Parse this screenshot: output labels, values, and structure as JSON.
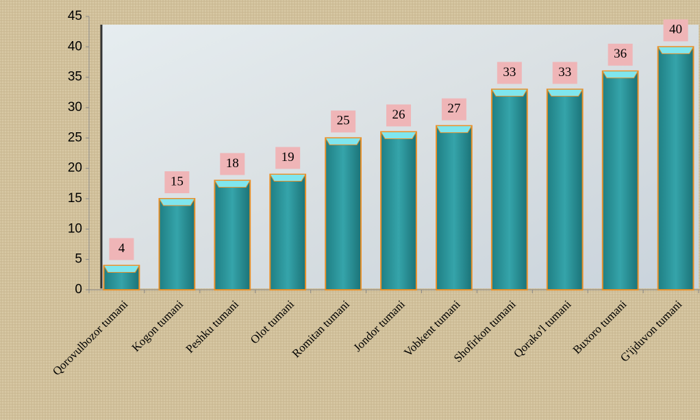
{
  "chart_data": {
    "type": "bar",
    "categories": [
      "Qorovulbozor tumani",
      "Kogon tumani",
      "Peshku tumani",
      "Olot tumani",
      "Romitan tumani",
      "Jondor tumani",
      "Vobkent tumani",
      "Shofirkon tumani",
      "Qorako'l tumani",
      "Buxoro tumani",
      "G'ijduvon tumani"
    ],
    "values": [
      4,
      15,
      18,
      19,
      25,
      26,
      27,
      33,
      33,
      36,
      40
    ],
    "color": "#2e9aa0",
    "ylim": [
      0,
      45
    ],
    "yticks": [
      0,
      5,
      10,
      15,
      20,
      25,
      30,
      35,
      40,
      45
    ]
  }
}
